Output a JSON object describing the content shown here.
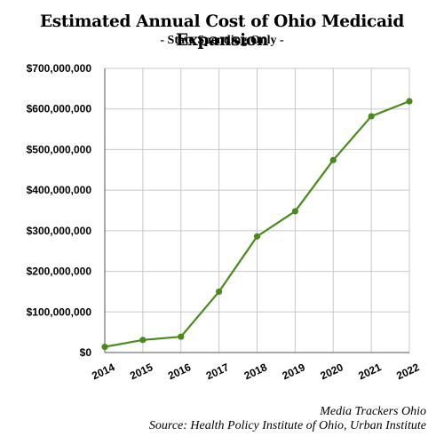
{
  "chart_data": {
    "type": "line",
    "title": "Estimated Annual Cost of Ohio Medicaid Expansion",
    "subtitle": "- State Spending Only -",
    "xlabel": "",
    "ylabel": "",
    "x": [
      "2014",
      "2015",
      "2016",
      "2017",
      "2018",
      "2019",
      "2020",
      "2021",
      "2022"
    ],
    "series": [
      {
        "values": [
          14000000,
          31000000,
          39000000,
          150000000,
          286000000,
          348000000,
          474000000,
          582000000,
          619000000
        ]
      }
    ],
    "ylim": [
      0,
      700000000
    ],
    "yticks": [
      0,
      100000000,
      200000000,
      300000000,
      400000000,
      500000000,
      600000000,
      700000000
    ],
    "ytick_labels": [
      "$0",
      "$100,000,000",
      "$200,000,000",
      "$300,000,000",
      "$400,000,000",
      "$500,000,000",
      "$600,000,000",
      "$700,000,000"
    ],
    "grid": true,
    "line_color": "#4a8a1c",
    "grid_color": "#c8c8c8"
  },
  "credits": {
    "line1": "Media Trackers Ohio",
    "line2": "Source: Health Policy Institute of Ohio, Urban Institute"
  }
}
